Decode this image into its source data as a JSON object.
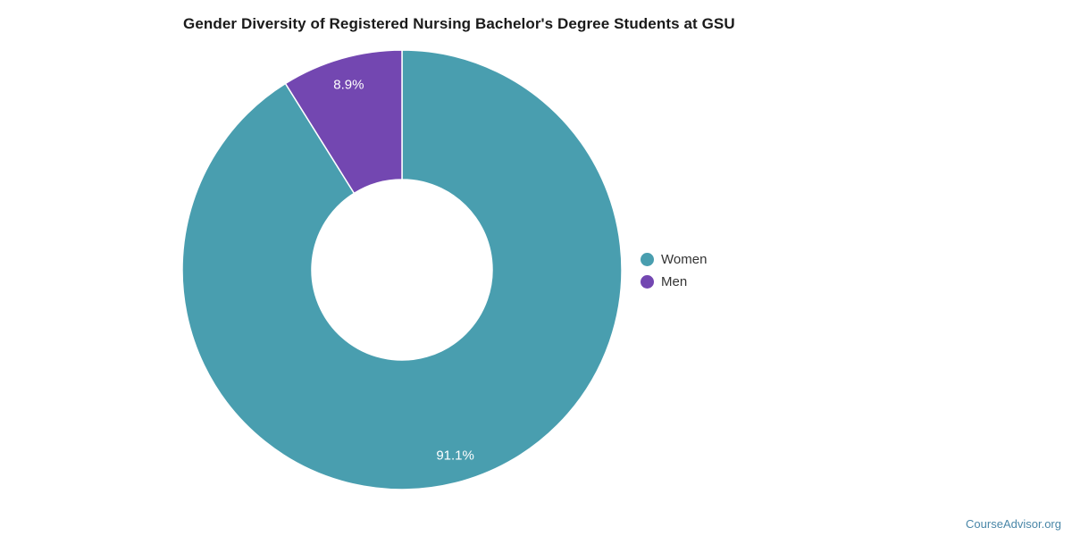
{
  "chart_data": {
    "type": "pie",
    "subtype": "donut",
    "title": "Gender Diversity of Registered Nursing Bachelor's Degree Students at GSU",
    "categories": [
      "Women",
      "Men"
    ],
    "values": [
      91.1,
      8.9
    ],
    "unit": "%",
    "series": [
      {
        "label": "Women",
        "value": 91.1,
        "display": "91.1%",
        "color": "#499EAF"
      },
      {
        "label": "Men",
        "value": 8.9,
        "display": "8.9%",
        "color": "#7347B1"
      }
    ],
    "start_angle_deg": 0,
    "direction": "clockwise",
    "inner_radius_ratio": 0.41,
    "slice_border_color": "#FFFFFF",
    "data_label_color": "#FFFFFF",
    "legend": {
      "position": "right",
      "entries": [
        "Women",
        "Men"
      ]
    }
  },
  "attribution": {
    "text": "CourseAdvisor.org",
    "color": "#4A87A8"
  },
  "colors": {
    "background": "#FFFFFF",
    "title_text": "#1A1A1A",
    "legend_text": "#333333"
  }
}
